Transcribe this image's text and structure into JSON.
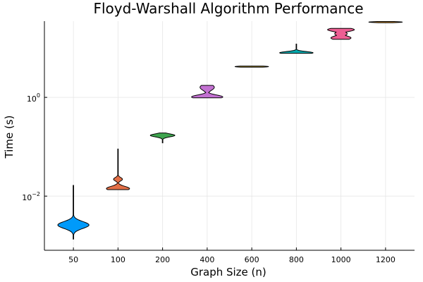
{
  "chart_data": {
    "type": "violin",
    "title": "Floyd-Warshall Algorithm Performance",
    "xlabel": "Graph Size (n)",
    "ylabel": "Time (s)",
    "yscale": "log10",
    "ylim": [
      0.0008,
      35
    ],
    "ytick_values": [
      0.01,
      1
    ],
    "ytick_labels": [
      {
        "base": "10",
        "exp": "−2"
      },
      {
        "base": "10",
        "exp": "0"
      }
    ],
    "grid": true,
    "legend": false,
    "categories": [
      "50",
      "100",
      "200",
      "400",
      "600",
      "800",
      "1000",
      "1200"
    ],
    "colors": [
      "#009AFA",
      "#E36F47",
      "#3EA44E",
      "#C371D2",
      "#AC8D18",
      "#00A9AD",
      "#ED5E93",
      "#C68225"
    ],
    "violins": [
      {
        "category": "50",
        "min": 0.00135,
        "max": 0.0165,
        "modes": [
          {
            "y": 0.0026,
            "w": 0.7,
            "s": 0.07
          }
        ]
      },
      {
        "category": "100",
        "min": 0.0135,
        "max": 0.09,
        "modes": [
          {
            "y": 0.0142,
            "w": 0.52,
            "s": 0.045
          },
          {
            "y": 0.022,
            "w": 0.2,
            "s": 0.035
          }
        ]
      },
      {
        "category": "200",
        "min": 0.12,
        "max": 0.19,
        "modes": [
          {
            "y": 0.17,
            "w": 0.55,
            "s": 0.03
          }
        ]
      },
      {
        "category": "400",
        "min": 0.98,
        "max": 1.75,
        "modes": [
          {
            "y": 1.02,
            "w": 0.7,
            "s": 0.04
          },
          {
            "y": 1.6,
            "w": 0.32,
            "s": 0.06
          }
        ]
      },
      {
        "category": "600",
        "min": 4.1,
        "max": 4.3,
        "modes": [
          {
            "y": 4.2,
            "w": 0.75,
            "s": 0.012
          }
        ]
      },
      {
        "category": "800",
        "min": 7.8,
        "max": 12.0,
        "modes": [
          {
            "y": 8.0,
            "w": 0.75,
            "s": 0.025
          }
        ]
      },
      {
        "category": "1000",
        "min": 15.0,
        "max": 25.0,
        "modes": [
          {
            "y": 23.5,
            "w": 0.6,
            "s": 0.035
          },
          {
            "y": 16.0,
            "w": 0.45,
            "s": 0.04
          },
          {
            "y": 19.5,
            "w": 0.28,
            "s": 0.04
          }
        ]
      },
      {
        "category": "1200",
        "min": 32.5,
        "max": 34.5,
        "modes": [
          {
            "y": 33.5,
            "w": 0.75,
            "s": 0.01
          }
        ]
      }
    ]
  }
}
